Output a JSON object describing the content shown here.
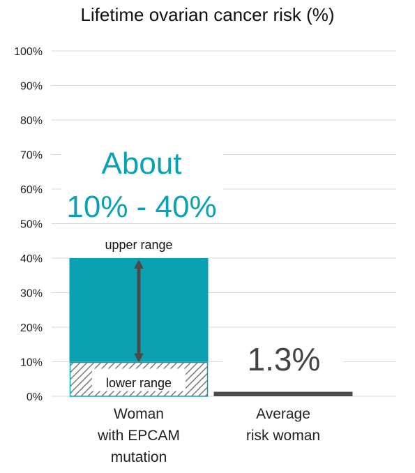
{
  "chart_data": {
    "type": "bar",
    "title": "Lifetime ovarian cancer risk (%)",
    "categories": [
      [
        "Woman",
        "with EPCAM",
        "mutation"
      ],
      [
        "Average",
        "risk woman"
      ]
    ],
    "ylim": [
      0,
      100
    ],
    "yticks": [
      "0%",
      "10%",
      "20%",
      "30%",
      "40%",
      "50%",
      "60%",
      "70%",
      "80%",
      "90%",
      "100%"
    ],
    "grid": true,
    "bars": [
      {
        "category_index": 0,
        "lower": 10,
        "upper": 40,
        "color": "#0aa2b2",
        "lower_fill": "hatched",
        "hatch_color": "#7a7a7a"
      },
      {
        "category_index": 1,
        "value": 1.3,
        "color": "#4a4a4a"
      }
    ],
    "annotations": {
      "range_text": [
        "About",
        "10% - 40%"
      ],
      "upper_label": "upper range",
      "lower_label": "lower range",
      "average_label": "1.3%"
    },
    "colors": {
      "accent": "#0aa2b2",
      "dark": "#4a4a4a",
      "grid": "#d9d9d9",
      "arrow": "#4a4a4a"
    }
  }
}
